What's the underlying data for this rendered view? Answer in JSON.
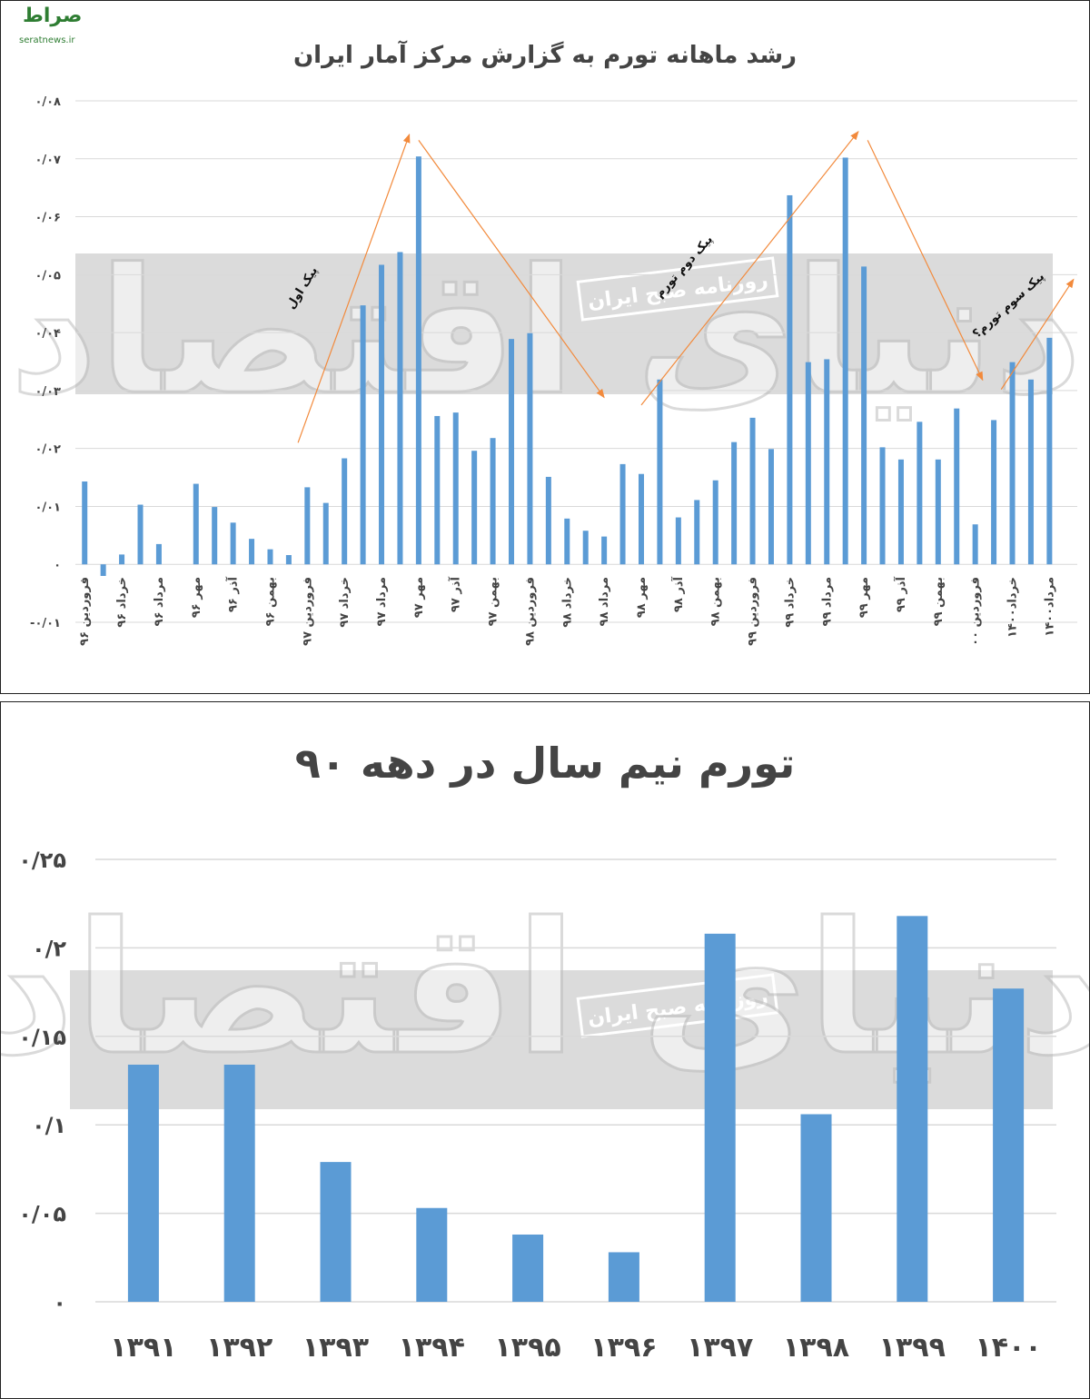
{
  "logo": {
    "mark": "صراط",
    "text": "seratnews.ir"
  },
  "watermark": {
    "big_text": "دنیای اقتصاد",
    "band_text": "روزنامه صبح ایران"
  },
  "colors": {
    "bar": "#5b9bd5",
    "grid": "#d9d9d9",
    "arrow": "#f28a3c",
    "band": "#cfcfcf",
    "text": "#444444"
  },
  "chart_data": [
    {
      "type": "bar",
      "title": "رشد ماهانه تورم به گزارش مرکز آمار ایران",
      "ylim": [
        -0.01,
        0.08
      ],
      "yticks": [
        {
          "value": 0.08,
          "label": "۰/۰۸"
        },
        {
          "value": 0.07,
          "label": "۰/۰۷"
        },
        {
          "value": 0.06,
          "label": "۰/۰۶"
        },
        {
          "value": 0.05,
          "label": "۰/۰۵"
        },
        {
          "value": 0.04,
          "label": "۰/۰۴"
        },
        {
          "value": 0.03,
          "label": "۰/۰۳"
        },
        {
          "value": 0.02,
          "label": "۰/۰۲"
        },
        {
          "value": 0.01,
          "label": "۰/۰۱"
        },
        {
          "value": 0,
          "label": "۰"
        },
        {
          "value": -0.01,
          "label": "-۰/۰۱"
        }
      ],
      "grid": true,
      "values": [
        0.0143,
        -0.002,
        0.0017,
        0.0103,
        0.0035,
        null,
        0.0139,
        0.0099,
        0.0072,
        0.0044,
        0.0026,
        0.0016,
        0.0133,
        0.0106,
        0.0183,
        0.0447,
        0.0517,
        0.0539,
        0.0704,
        0.0256,
        0.0262,
        0.0196,
        0.0218,
        0.0389,
        0.0399,
        0.0151,
        0.0079,
        0.0058,
        0.0048,
        0.0173,
        0.0156,
        0.0319,
        0.0081,
        0.0111,
        0.0145,
        0.0211,
        0.0253,
        0.0199,
        0.0637,
        0.0349,
        0.0354,
        0.0702,
        0.0514,
        0.0202,
        0.0181,
        0.0246,
        0.0181,
        0.0269,
        0.0069,
        0.0249,
        0.0349,
        0.0319,
        0.0391
      ],
      "xtick_labels": [
        {
          "index": 0,
          "label": "فروردین ۹۶"
        },
        {
          "index": 2,
          "label": "خرداد ۹۶"
        },
        {
          "index": 4,
          "label": "مرداد ۹۶"
        },
        {
          "index": 6,
          "label": "مهر ۹۶"
        },
        {
          "index": 8,
          "label": "آذر ۹۶"
        },
        {
          "index": 10,
          "label": "بهمن ۹۶"
        },
        {
          "index": 12,
          "label": "فروردین ۹۷"
        },
        {
          "index": 14,
          "label": "خرداد ۹۷"
        },
        {
          "index": 16,
          "label": "مرداد ۹۷"
        },
        {
          "index": 18,
          "label": "مهر ۹۷"
        },
        {
          "index": 20,
          "label": "آذر ۹۷"
        },
        {
          "index": 22,
          "label": "بهمن ۹۷"
        },
        {
          "index": 24,
          "label": "فروردین ۹۸"
        },
        {
          "index": 26,
          "label": "خرداد ۹۸"
        },
        {
          "index": 28,
          "label": "مرداد ۹۸"
        },
        {
          "index": 30,
          "label": "مهر ۹۸"
        },
        {
          "index": 32,
          "label": "آذر ۹۸"
        },
        {
          "index": 34,
          "label": "بهمن ۹۸"
        },
        {
          "index": 36,
          "label": "فروردین ۹۹"
        },
        {
          "index": 38,
          "label": "خرداد ۹۹"
        },
        {
          "index": 40,
          "label": "مرداد ۹۹"
        },
        {
          "index": 42,
          "label": "مهر ۹۹"
        },
        {
          "index": 44,
          "label": "آذر ۹۹"
        },
        {
          "index": 46,
          "label": "بهمن ۹۹"
        },
        {
          "index": 48,
          "label": "فروردین ۰۰"
        },
        {
          "index": 50,
          "label": "خرداد۱۴۰۰"
        },
        {
          "index": 52,
          "label": "مرداد۱۴۰۰"
        }
      ],
      "annotations": [
        {
          "text": "پیک اول",
          "near_index": 11
        },
        {
          "text": "پیک دوم تورم",
          "near_index": 32
        },
        {
          "text": "پیک سوم تورم؟",
          "near_index": 49
        }
      ],
      "trend_arrows": [
        {
          "from": {
            "index": 11.5,
            "value": 0.021
          },
          "to": {
            "index": 17.5,
            "value": 0.0742
          }
        },
        {
          "from": {
            "index": 18,
            "value": 0.0732
          },
          "to": {
            "index": 28,
            "value": 0.0288
          }
        },
        {
          "from": {
            "index": 30,
            "value": 0.0275
          },
          "to": {
            "index": 41.7,
            "value": 0.0747
          }
        },
        {
          "from": {
            "index": 42.2,
            "value": 0.0732
          },
          "to": {
            "index": 48.4,
            "value": 0.0318
          }
        },
        {
          "from": {
            "index": 49.4,
            "value": 0.0302
          },
          "to": {
            "index": 53.3,
            "value": 0.0492
          }
        }
      ]
    },
    {
      "type": "bar",
      "title": "تورم نیم سال در دهه ۹۰",
      "categories": [
        "۱۳۹۱",
        "۱۳۹۲",
        "۱۳۹۳",
        "۱۳۹۴",
        "۱۳۹۵",
        "۱۳۹۶",
        "۱۳۹۷",
        "۱۳۹۸",
        "۱۳۹۹",
        "۱۴۰۰"
      ],
      "values": [
        0.134,
        0.134,
        0.079,
        0.053,
        0.038,
        0.028,
        0.208,
        0.106,
        0.218,
        0.177
      ],
      "ylim": [
        0,
        0.25
      ],
      "yticks": [
        {
          "value": 0.25,
          "label": "۰/۲۵"
        },
        {
          "value": 0.2,
          "label": "۰/۲"
        },
        {
          "value": 0.15,
          "label": "۰/۱۵"
        },
        {
          "value": 0.1,
          "label": "۰/۱"
        },
        {
          "value": 0.05,
          "label": "۰/۰۵"
        },
        {
          "value": 0,
          "label": "۰"
        }
      ],
      "grid": true
    }
  ]
}
